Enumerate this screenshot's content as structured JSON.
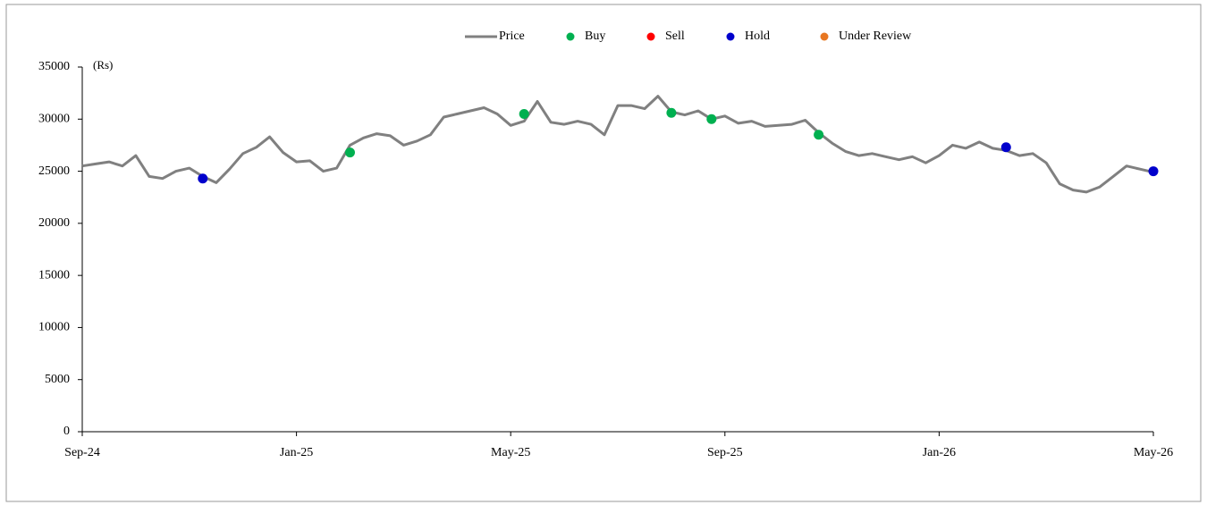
{
  "chart_data": {
    "type": "line",
    "y_label": "(Rs)",
    "categories": [
      "Sep-24",
      null,
      null,
      null,
      null,
      null,
      null,
      null,
      null,
      null,
      null,
      null,
      null,
      null,
      null,
      null,
      "Jan-25",
      null,
      null,
      null,
      null,
      null,
      null,
      null,
      null,
      null,
      null,
      null,
      null,
      null,
      null,
      null,
      "May-25",
      null,
      null,
      null,
      null,
      null,
      null,
      null,
      null,
      null,
      null,
      null,
      null,
      null,
      null,
      null,
      "Sep-25",
      null,
      null,
      null,
      null,
      null,
      null,
      null,
      null,
      null,
      null,
      null,
      null,
      null,
      null,
      null,
      "Jan-26",
      null,
      null,
      null,
      null,
      null,
      null,
      null,
      null,
      null,
      null,
      null,
      null,
      null,
      null,
      null,
      "May-26"
    ],
    "series": [
      {
        "name": "Price",
        "color": "#808080",
        "mode": "line",
        "values": [
          25500,
          25700,
          25900,
          25500,
          26500,
          24500,
          24300,
          25000,
          25300,
          24500,
          23900,
          25200,
          26700,
          27300,
          28300,
          26800,
          25900,
          26000,
          25000,
          25300,
          27500,
          28200,
          28600,
          28400,
          27500,
          27900,
          28500,
          30200,
          30500,
          30800,
          31100,
          30500,
          29400,
          29800,
          31700,
          29700,
          29500,
          29800,
          29500,
          28500,
          31300,
          31300,
          31000,
          32200,
          30700,
          30400,
          30800,
          30000,
          30300,
          29600,
          29800,
          29300,
          29400,
          29500,
          29900,
          28700,
          27700,
          26900,
          26500,
          26700,
          26400,
          26100,
          26400,
          25800,
          26500,
          27500,
          27200,
          27800,
          27200,
          27000,
          26500,
          26700,
          25800,
          23800,
          23200,
          23000,
          23500,
          24500,
          25500,
          25200,
          24900
        ]
      },
      {
        "name": "Buy",
        "color": "#00b050",
        "mode": "markers",
        "values": [
          null,
          null,
          null,
          null,
          null,
          null,
          null,
          null,
          null,
          null,
          null,
          null,
          null,
          null,
          null,
          null,
          null,
          null,
          null,
          null,
          26800,
          null,
          null,
          null,
          null,
          null,
          null,
          null,
          null,
          null,
          null,
          null,
          null,
          30500,
          null,
          null,
          null,
          null,
          null,
          null,
          null,
          null,
          null,
          null,
          30600,
          null,
          null,
          30000,
          null,
          null,
          null,
          null,
          null,
          null,
          null,
          28500,
          null,
          null,
          null,
          null,
          null,
          null,
          null,
          null,
          null,
          null,
          null,
          null,
          null,
          null,
          null,
          null,
          null,
          null,
          null,
          null,
          null,
          null,
          null,
          null,
          null
        ]
      },
      {
        "name": "Sell",
        "color": "#ff0000",
        "mode": "markers",
        "values": [
          null,
          null,
          null,
          null,
          null,
          null,
          null,
          null,
          null,
          null,
          null,
          null,
          null,
          null,
          null,
          null,
          null,
          null,
          null,
          null,
          null,
          null,
          null,
          null,
          null,
          null,
          null,
          null,
          null,
          null,
          null,
          null,
          null,
          null,
          null,
          null,
          null,
          null,
          null,
          null,
          null,
          null,
          null,
          null,
          null,
          null,
          null,
          null,
          null,
          null,
          null,
          null,
          null,
          null,
          null,
          null,
          null,
          null,
          null,
          null,
          null,
          null,
          null,
          null,
          null,
          null,
          null,
          null,
          null,
          null,
          null,
          null,
          null,
          null,
          null,
          null,
          null,
          null,
          null,
          null,
          null
        ]
      },
      {
        "name": "Hold",
        "color": "#0000cc",
        "mode": "markers",
        "values": [
          null,
          null,
          null,
          null,
          null,
          null,
          null,
          null,
          null,
          24300,
          null,
          null,
          null,
          null,
          null,
          null,
          null,
          null,
          null,
          null,
          null,
          null,
          null,
          null,
          null,
          null,
          null,
          null,
          null,
          null,
          null,
          null,
          null,
          null,
          null,
          null,
          null,
          null,
          null,
          null,
          null,
          null,
          null,
          null,
          null,
          null,
          null,
          null,
          null,
          null,
          null,
          null,
          null,
          null,
          null,
          null,
          null,
          null,
          null,
          null,
          null,
          null,
          null,
          null,
          null,
          null,
          null,
          null,
          null,
          27300,
          null,
          null,
          null,
          null,
          null,
          null,
          null,
          null,
          null,
          null,
          25000
        ]
      },
      {
        "name": "Under Review",
        "color": "#e87722",
        "mode": "markers",
        "values": [
          null,
          null,
          null,
          null,
          null,
          null,
          null,
          null,
          null,
          null,
          null,
          null,
          null,
          null,
          null,
          null,
          null,
          null,
          null,
          null,
          null,
          null,
          null,
          null,
          null,
          null,
          null,
          null,
          null,
          null,
          null,
          null,
          null,
          null,
          null,
          null,
          null,
          null,
          null,
          null,
          null,
          null,
          null,
          null,
          null,
          null,
          null,
          null,
          null,
          null,
          null,
          null,
          null,
          null,
          null,
          null,
          null,
          null,
          null,
          null,
          null,
          null,
          null,
          null,
          null,
          null,
          null,
          null,
          null,
          null,
          null,
          null,
          null,
          null,
          null,
          null,
          null,
          null,
          null,
          null,
          null
        ]
      }
    ],
    "ylim": [
      0,
      35000
    ],
    "yticks": [
      0,
      5000,
      10000,
      15000,
      20000,
      25000,
      30000,
      35000
    ],
    "grid": false,
    "legend": "top"
  }
}
